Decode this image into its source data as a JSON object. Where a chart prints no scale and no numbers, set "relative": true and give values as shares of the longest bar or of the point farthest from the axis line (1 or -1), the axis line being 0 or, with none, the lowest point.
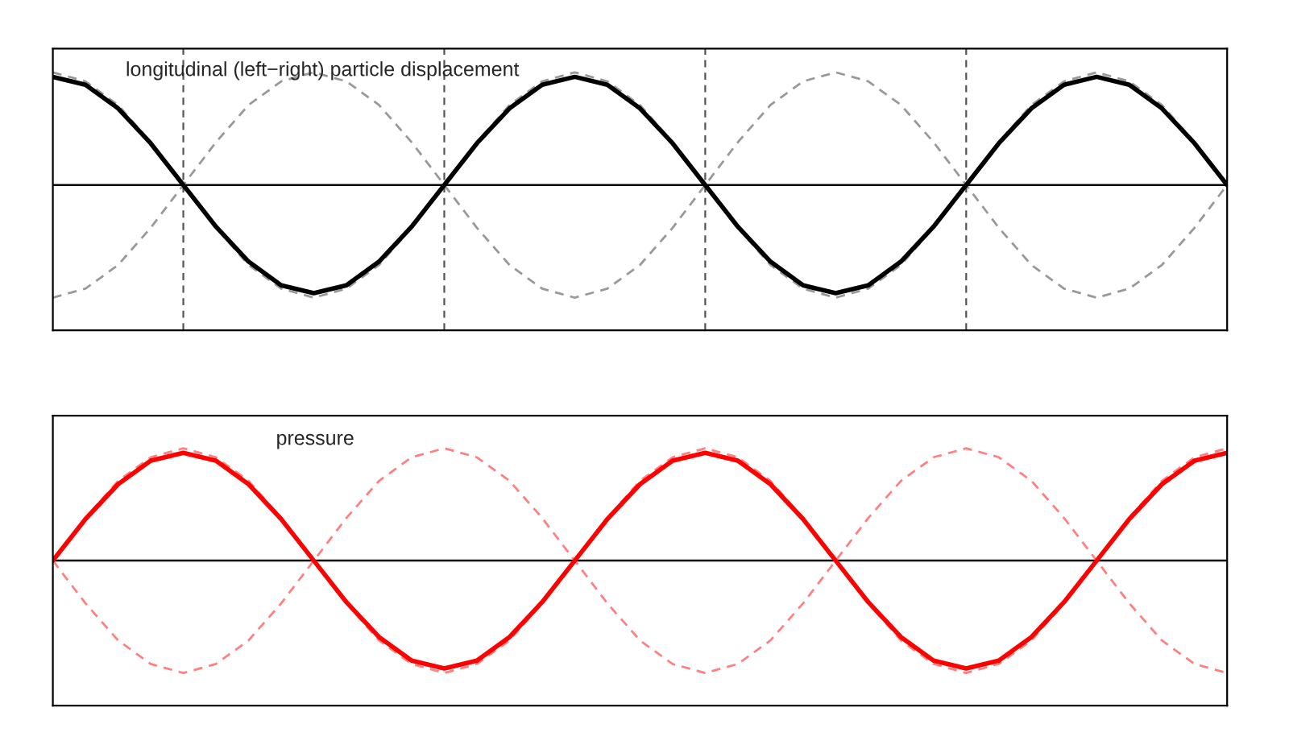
{
  "chart_data": [
    {
      "type": "line",
      "relative": true,
      "grid": "x",
      "annotations": [
        "longitudinal (left−right) particle displacement"
      ],
      "categories": [
        null,
        null,
        null,
        null,
        null,
        null,
        null,
        null,
        null,
        null,
        null,
        null,
        null,
        null,
        null,
        null,
        null,
        null,
        null,
        null,
        null,
        null,
        null,
        null,
        null,
        null,
        null,
        null,
        null,
        null,
        null,
        null,
        null,
        null,
        null,
        null,
        null
      ],
      "ref_lines": [
        {
          "axis": "y",
          "value": 0,
          "color": "#000000",
          "line_style": "solid"
        }
      ],
      "series": [
        {
          "color": "#999999",
          "line_style": "dashed",
          "values": [
            1,
            0.92,
            0.71,
            0.38,
            0,
            -0.38,
            -0.71,
            -0.92,
            -1,
            -0.92,
            -0.71,
            -0.38,
            0,
            0.38,
            0.71,
            0.92,
            1,
            0.92,
            0.71,
            0.38,
            0,
            -0.38,
            -0.71,
            -0.92,
            -1,
            -0.92,
            -0.71,
            -0.38,
            0,
            0.38,
            0.71,
            0.92,
            1,
            0.92,
            0.71,
            0.38,
            0
          ]
        },
        {
          "color": "#999999",
          "line_style": "dashed",
          "values": [
            -1,
            -0.92,
            -0.71,
            -0.38,
            0,
            0.38,
            0.71,
            0.92,
            1,
            0.92,
            0.71,
            0.38,
            0,
            -0.38,
            -0.71,
            -0.92,
            -1,
            -0.92,
            -0.71,
            -0.38,
            0,
            0.38,
            0.71,
            0.92,
            1,
            0.92,
            0.71,
            0.38,
            0,
            -0.38,
            -0.71,
            -0.92,
            -1,
            -0.92,
            -0.71,
            -0.38,
            0
          ]
        },
        {
          "color": "#000000",
          "line_style": "solid",
          "values": [
            0.96,
            0.89,
            0.68,
            0.37,
            0,
            -0.37,
            -0.68,
            -0.89,
            -0.96,
            -0.89,
            -0.68,
            -0.37,
            0,
            0.37,
            0.68,
            0.89,
            0.96,
            0.89,
            0.68,
            0.37,
            0,
            -0.37,
            -0.68,
            -0.89,
            -0.96,
            -0.89,
            -0.68,
            -0.37,
            0,
            0.37,
            0.68,
            0.89,
            0.96,
            0.89,
            0.68,
            0.37,
            0
          ]
        }
      ]
    },
    {
      "type": "line",
      "relative": true,
      "annotations": [
        "pressure"
      ],
      "categories": [
        null,
        null,
        null,
        null,
        null,
        null,
        null,
        null,
        null,
        null,
        null,
        null,
        null,
        null,
        null,
        null,
        null,
        null,
        null,
        null,
        null,
        null,
        null,
        null,
        null,
        null,
        null,
        null,
        null,
        null,
        null,
        null,
        null,
        null,
        null,
        null,
        null
      ],
      "ref_lines": [
        {
          "axis": "y",
          "value": 0,
          "color": "#000000",
          "line_style": "solid"
        }
      ],
      "series": [
        {
          "color": "#ff8080",
          "line_style": "dashed",
          "values": [
            0,
            0.38,
            0.71,
            0.92,
            1,
            0.92,
            0.71,
            0.38,
            0,
            -0.38,
            -0.71,
            -0.92,
            -1,
            -0.92,
            -0.71,
            -0.38,
            0,
            0.38,
            0.71,
            0.92,
            1,
            0.92,
            0.71,
            0.38,
            0,
            -0.38,
            -0.71,
            -0.92,
            -1,
            -0.92,
            -0.71,
            -0.38,
            0,
            0.38,
            0.71,
            0.92,
            1
          ]
        },
        {
          "color": "#ff8080",
          "line_style": "dashed",
          "values": [
            0,
            -0.38,
            -0.71,
            -0.92,
            -1,
            -0.92,
            -0.71,
            -0.38,
            0,
            0.38,
            0.71,
            0.92,
            1,
            0.92,
            0.71,
            0.38,
            0,
            -0.38,
            -0.71,
            -0.92,
            -1,
            -0.92,
            -0.71,
            -0.38,
            0,
            0.38,
            0.71,
            0.92,
            1,
            0.92,
            0.71,
            0.38,
            0,
            -0.38,
            -0.71,
            -0.92,
            -1
          ]
        },
        {
          "color": "#ff0000",
          "line_style": "solid",
          "values": [
            0,
            0.37,
            0.68,
            0.89,
            0.96,
            0.89,
            0.68,
            0.37,
            0,
            -0.37,
            -0.68,
            -0.89,
            -0.96,
            -0.89,
            -0.68,
            -0.37,
            0,
            0.37,
            0.68,
            0.89,
            0.96,
            0.89,
            0.68,
            0.37,
            0,
            -0.37,
            -0.68,
            -0.89,
            -0.96,
            -0.89,
            -0.68,
            -0.37,
            0,
            0.37,
            0.68,
            0.89,
            0.96
          ]
        }
      ]
    }
  ]
}
